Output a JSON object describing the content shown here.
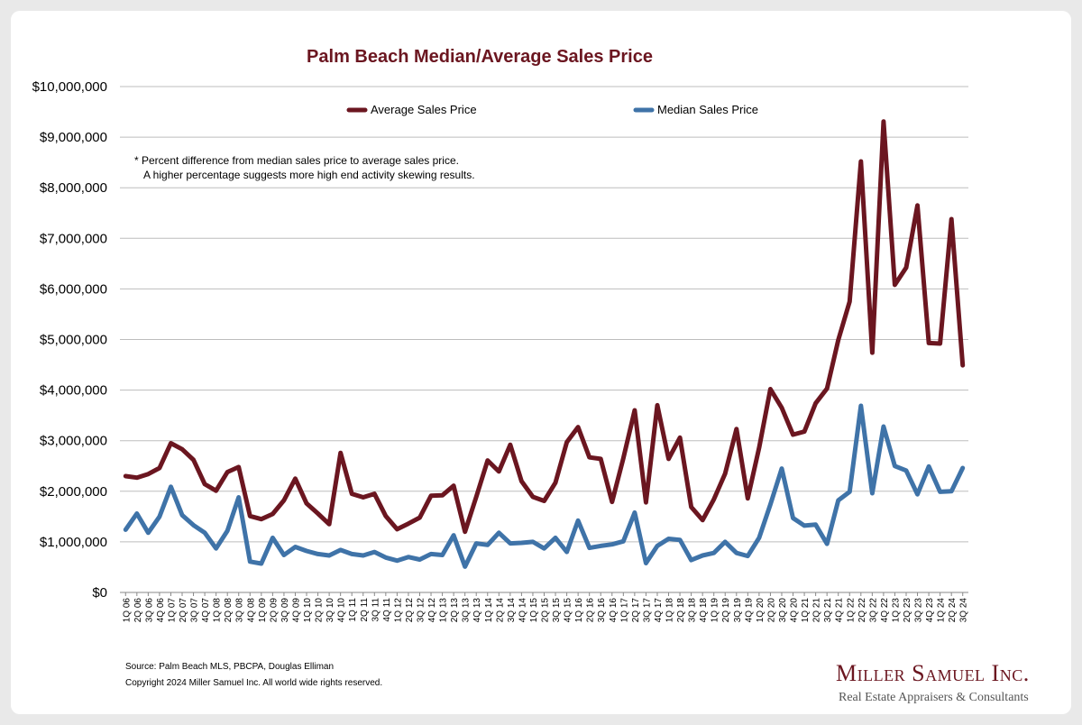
{
  "chart_data": {
    "type": "line",
    "title": "Palm Beach Median/Average Sales Price",
    "xlabel": "",
    "ylabel": "",
    "ylim": [
      0,
      10000000
    ],
    "yticks": [
      "$0",
      "$1,000,000",
      "$2,000,000",
      "$3,000,000",
      "$4,000,000",
      "$5,000,000",
      "$6,000,000",
      "$7,000,000",
      "$8,000,000",
      "$9,000,000",
      "$10,000,000"
    ],
    "grid": true,
    "legend_position": "top",
    "categories": [
      "1Q 06",
      "2Q 06",
      "3Q 06",
      "4Q 06",
      "1Q 07",
      "2Q 07",
      "3Q 07",
      "4Q 07",
      "1Q 08",
      "2Q 08",
      "3Q 08",
      "4Q 08",
      "1Q 09",
      "2Q 09",
      "3Q 09",
      "4Q 09",
      "1Q 10",
      "2Q 10",
      "3Q 10",
      "4Q 10",
      "1Q 11",
      "2Q 11",
      "3Q 11",
      "4Q 11",
      "1Q 12",
      "2Q 12",
      "3Q 12",
      "4Q 12",
      "1Q 13",
      "2Q 13",
      "3Q 13",
      "4Q 13",
      "1Q 14",
      "2Q 14",
      "3Q 14",
      "4Q 14",
      "1Q 15",
      "2Q 15",
      "3Q 15",
      "4Q 15",
      "1Q 16",
      "2Q 16",
      "3Q 16",
      "4Q 16",
      "1Q 17",
      "2Q 17",
      "3Q 17",
      "4Q 17",
      "1Q 18",
      "2Q 18",
      "3Q 18",
      "4Q 18",
      "1Q 19",
      "2Q 19",
      "3Q 19",
      "4Q 19",
      "1Q 20",
      "2Q 20",
      "3Q 20",
      "4Q 20",
      "1Q 21",
      "2Q 21",
      "3Q 21",
      "4Q 21",
      "1Q 22",
      "2Q 22",
      "3Q 22",
      "4Q 22",
      "1Q 23",
      "2Q 23",
      "3Q 23",
      "4Q 23",
      "1Q 24",
      "2Q 24",
      "3Q 24"
    ],
    "series": [
      {
        "name": "Average Sales Price",
        "color": "#6b1620",
        "values": [
          2300000,
          2270000,
          2340000,
          2460000,
          2950000,
          2830000,
          2620000,
          2140000,
          2010000,
          2380000,
          2480000,
          1510000,
          1450000,
          1550000,
          1820000,
          2250000,
          1760000,
          1560000,
          1350000,
          2760000,
          1950000,
          1880000,
          1950000,
          1510000,
          1250000,
          1360000,
          1480000,
          1910000,
          1920000,
          2110000,
          1200000,
          1890000,
          2610000,
          2390000,
          2920000,
          2200000,
          1890000,
          1810000,
          2170000,
          2970000,
          3270000,
          2670000,
          2640000,
          1790000,
          2650000,
          3600000,
          1780000,
          3700000,
          2640000,
          3060000,
          1690000,
          1430000,
          1840000,
          2350000,
          3230000,
          1860000,
          2860000,
          4020000,
          3650000,
          3120000,
          3180000,
          3740000,
          4030000,
          4990000,
          5750000,
          8520000,
          4740000,
          9310000,
          6080000,
          6420000,
          7650000,
          4930000,
          4920000,
          7380000,
          4490000
        ]
      },
      {
        "name": "Median Sales Price",
        "color": "#3f73a8",
        "values": [
          1240000,
          1560000,
          1180000,
          1500000,
          2090000,
          1530000,
          1330000,
          1180000,
          870000,
          1220000,
          1880000,
          610000,
          570000,
          1080000,
          740000,
          900000,
          820000,
          760000,
          730000,
          840000,
          760000,
          730000,
          800000,
          690000,
          630000,
          700000,
          650000,
          760000,
          740000,
          1130000,
          510000,
          970000,
          940000,
          1180000,
          970000,
          980000,
          1000000,
          870000,
          1080000,
          800000,
          1420000,
          880000,
          920000,
          950000,
          1010000,
          1580000,
          580000,
          920000,
          1060000,
          1040000,
          640000,
          730000,
          780000,
          1000000,
          780000,
          720000,
          1080000,
          1740000,
          2450000,
          1470000,
          1320000,
          1340000,
          960000,
          1820000,
          1990000,
          3690000,
          1960000,
          3280000,
          2500000,
          2410000,
          1940000,
          2490000,
          1990000,
          2000000,
          2460000
        ]
      }
    ],
    "annotations": [
      "*  Percent difference from median sales price to average sales price.",
      "A higher percentage suggests more high end activity skewing results."
    ]
  },
  "footer": {
    "source": "Source: Palm Beach MLS, PBCPA, Douglas Elliman",
    "copyright": "Copyright 2024 Miller Samuel Inc.  All world wide rights reserved."
  },
  "logo": {
    "name": "Miller Samuel Inc.",
    "tagline": "Real Estate Appraisers & Consultants"
  }
}
